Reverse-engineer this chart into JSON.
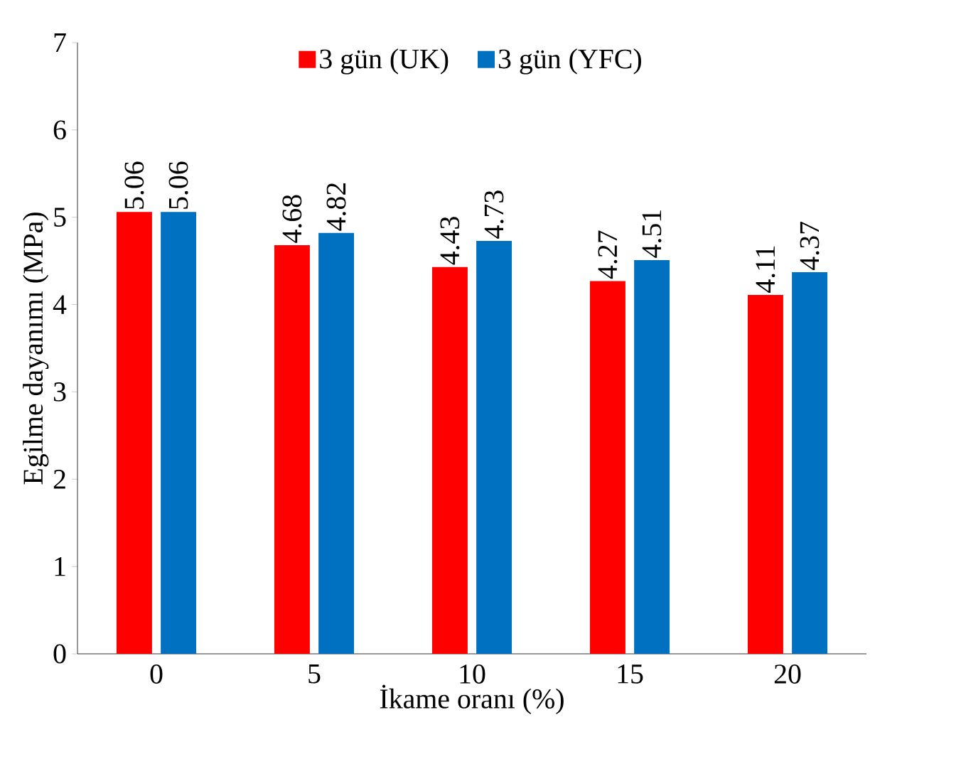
{
  "chart_data": {
    "type": "bar",
    "xlabel": "İkame oranı (%)",
    "ylabel": "Egilme dayanımı (MPa)",
    "categories": [
      "0",
      "5",
      "10",
      "15",
      "20"
    ],
    "series": [
      {
        "name": "3 gün (UK)",
        "color": "#ff0000",
        "values": [
          5.06,
          4.68,
          4.43,
          4.27,
          4.11
        ]
      },
      {
        "name": "3 gün (YFC)",
        "color": "#0070c0",
        "values": [
          5.06,
          4.82,
          4.73,
          4.51,
          4.37
        ]
      }
    ],
    "ylim": [
      0,
      7
    ],
    "yticks": [
      0,
      1,
      2,
      3,
      4,
      5,
      6,
      7
    ],
    "grid": false,
    "legend": "top",
    "data_labels": true
  }
}
